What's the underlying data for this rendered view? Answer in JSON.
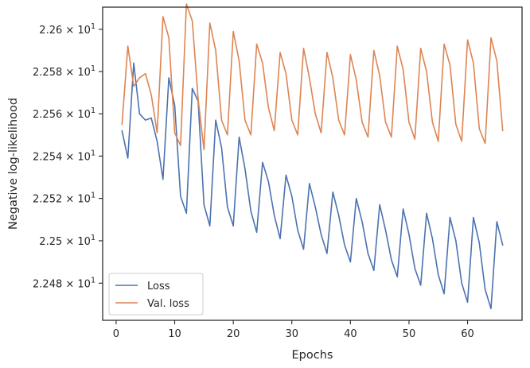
{
  "chart_data": {
    "type": "line",
    "title": "",
    "xlabel": "Epochs",
    "ylabel": "Negative log-likelihood",
    "xlim": [
      -2.3,
      69.3
    ],
    "ylim": [
      22.4625,
      22.6105
    ],
    "log_y": true,
    "grid": false,
    "legend_position": "lower-left",
    "x_ticks": [
      0,
      10,
      20,
      30,
      40,
      50,
      60
    ],
    "y_ticks": [
      {
        "value": 22.48,
        "mantissa": "2.248",
        "base": "10",
        "exp": "1"
      },
      {
        "value": 22.5,
        "mantissa": "2.25",
        "base": "10",
        "exp": "1"
      },
      {
        "value": 22.52,
        "mantissa": "2.252",
        "base": "10",
        "exp": "1"
      },
      {
        "value": 22.54,
        "mantissa": "2.254",
        "base": "10",
        "exp": "1"
      },
      {
        "value": 22.56,
        "mantissa": "2.256",
        "base": "10",
        "exp": "1"
      },
      {
        "value": 22.58,
        "mantissa": "2.258",
        "base": "10",
        "exp": "1"
      },
      {
        "value": 22.6,
        "mantissa": "2.26",
        "base": "10",
        "exp": "1"
      }
    ],
    "x": [
      1,
      2,
      3,
      4,
      5,
      6,
      7,
      8,
      9,
      10,
      11,
      12,
      13,
      14,
      15,
      16,
      17,
      18,
      19,
      20,
      21,
      22,
      23,
      24,
      25,
      26,
      27,
      28,
      29,
      30,
      31,
      32,
      33,
      34,
      35,
      36,
      37,
      38,
      39,
      40,
      41,
      42,
      43,
      44,
      45,
      46,
      47,
      48,
      49,
      50,
      51,
      52,
      53,
      54,
      55,
      56,
      57,
      58,
      59,
      60,
      61,
      62,
      63,
      64,
      65,
      66
    ],
    "series": [
      {
        "name": "Loss",
        "color": "#4c72b0",
        "values": [
          22.552,
          22.539,
          22.584,
          22.56,
          22.557,
          22.558,
          22.547,
          22.529,
          22.577,
          22.564,
          22.521,
          22.513,
          22.572,
          22.566,
          22.517,
          22.507,
          22.557,
          22.544,
          22.516,
          22.507,
          22.549,
          22.534,
          22.514,
          22.504,
          22.537,
          22.528,
          22.512,
          22.501,
          22.531,
          22.521,
          22.505,
          22.496,
          22.527,
          22.516,
          22.503,
          22.494,
          22.523,
          22.512,
          22.498,
          22.49,
          22.52,
          22.509,
          22.494,
          22.486,
          22.517,
          22.505,
          22.491,
          22.483,
          22.515,
          22.503,
          22.487,
          22.479,
          22.513,
          22.501,
          22.484,
          22.475,
          22.511,
          22.5,
          22.48,
          22.471,
          22.511,
          22.499,
          22.477,
          22.468,
          22.509,
          22.498
        ]
      },
      {
        "name": "Val. loss",
        "color": "#dd8452",
        "values": [
          22.555,
          22.592,
          22.573,
          22.577,
          22.579,
          22.569,
          22.551,
          22.606,
          22.596,
          22.551,
          22.545,
          22.612,
          22.604,
          22.567,
          22.543,
          22.603,
          22.59,
          22.557,
          22.55,
          22.599,
          22.585,
          22.557,
          22.55,
          22.593,
          22.584,
          22.563,
          22.552,
          22.589,
          22.579,
          22.557,
          22.55,
          22.591,
          22.577,
          22.56,
          22.551,
          22.589,
          22.577,
          22.557,
          22.55,
          22.588,
          22.576,
          22.556,
          22.549,
          22.59,
          22.578,
          22.556,
          22.549,
          22.592,
          22.581,
          22.556,
          22.548,
          22.591,
          22.58,
          22.556,
          22.547,
          22.593,
          22.583,
          22.555,
          22.547,
          22.595,
          22.584,
          22.553,
          22.546,
          22.596,
          22.585,
          22.552
        ]
      }
    ]
  }
}
